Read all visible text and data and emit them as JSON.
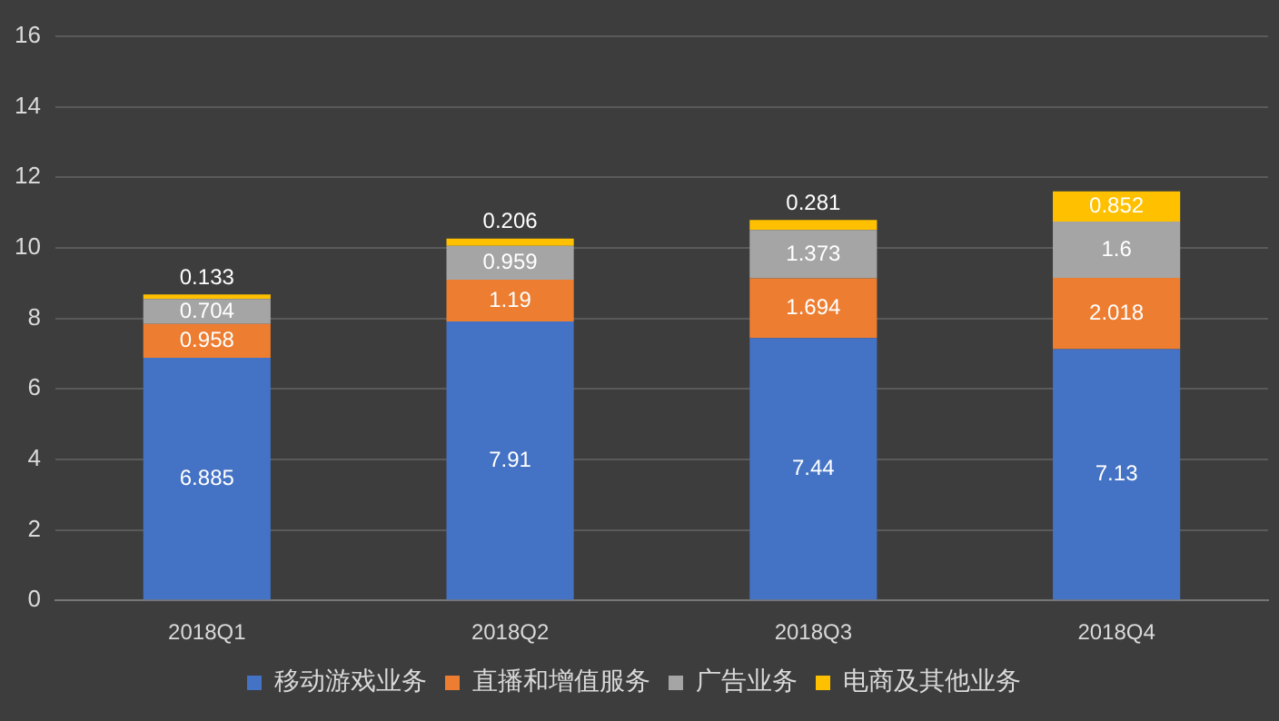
{
  "chart_data": {
    "type": "bar",
    "stacked": true,
    "categories": [
      "2018Q1",
      "2018Q2",
      "2018Q3",
      "2018Q4"
    ],
    "series": [
      {
        "name": "移动游戏业务",
        "color": "#4472c4",
        "values": [
          6.885,
          7.91,
          7.44,
          7.13
        ]
      },
      {
        "name": "直播和增值服务",
        "color": "#ed7d31",
        "values": [
          0.958,
          1.19,
          1.694,
          2.018
        ]
      },
      {
        "name": "广告业务",
        "color": "#a5a5a5",
        "values": [
          0.704,
          0.959,
          1.373,
          1.6
        ]
      },
      {
        "name": "电商及其他业务",
        "color": "#ffc000",
        "values": [
          0.133,
          0.206,
          0.281,
          0.852
        ]
      }
    ],
    "ylim": [
      0,
      16
    ],
    "yticks": [
      0,
      2,
      4,
      6,
      8,
      10,
      12,
      14,
      16
    ],
    "grid": "y",
    "legend": "bottom",
    "data_labels": true
  }
}
